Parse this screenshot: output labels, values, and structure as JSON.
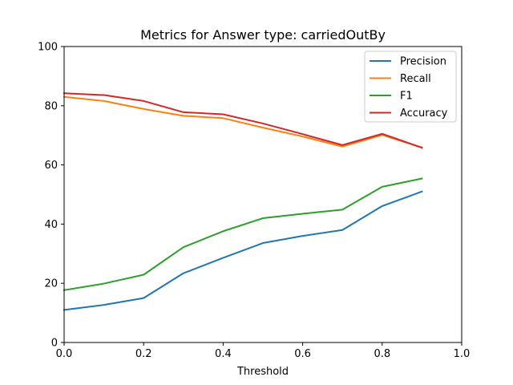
{
  "chart_data": {
    "type": "line",
    "title": "Metrics for Answer type: carriedOutBy",
    "xlabel": "Threshold",
    "ylabel": "",
    "xlim": [
      0.0,
      1.0
    ],
    "ylim": [
      0,
      100
    ],
    "x_ticks": [
      "0.0",
      "0.2",
      "0.4",
      "0.6",
      "0.8",
      "1.0"
    ],
    "y_ticks": [
      "0",
      "20",
      "40",
      "60",
      "80",
      "100"
    ],
    "grid": false,
    "legend_position": "top-right",
    "x": [
      0.0,
      0.1,
      0.2,
      0.3,
      0.4,
      0.5,
      0.6,
      0.7,
      0.8,
      0.9
    ],
    "series": [
      {
        "name": "Precision",
        "color": "#1f77b4",
        "values": [
          11.0,
          12.7,
          15.0,
          23.4,
          28.6,
          33.6,
          36.0,
          38.0,
          46.1,
          51.0
        ]
      },
      {
        "name": "Recall",
        "color": "#ff7f0e",
        "values": [
          83.0,
          81.6,
          78.9,
          76.6,
          75.8,
          72.6,
          69.6,
          66.2,
          70.1,
          65.9
        ]
      },
      {
        "name": "F1",
        "color": "#2ca02c",
        "values": [
          17.7,
          19.9,
          22.9,
          32.2,
          37.6,
          42.0,
          43.5,
          44.9,
          52.6,
          55.4
        ]
      },
      {
        "name": "Accuracy",
        "color": "#d62728",
        "values": [
          84.2,
          83.6,
          81.6,
          77.8,
          77.1,
          74.0,
          70.4,
          66.7,
          70.5,
          65.8
        ]
      }
    ]
  }
}
